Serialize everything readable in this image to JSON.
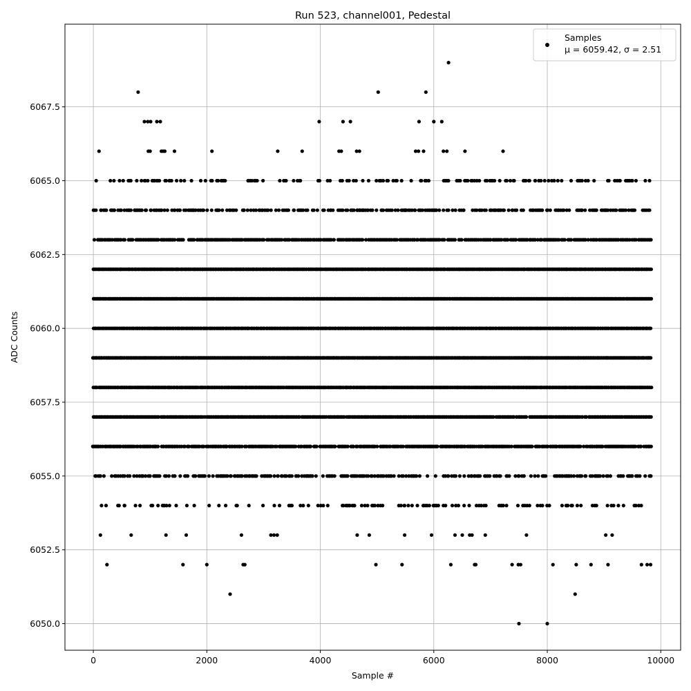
{
  "chart_data": {
    "type": "scatter",
    "title": "Run 523, channel001, Pedestal",
    "xlabel": "Sample #",
    "ylabel": "ADC Counts",
    "xlim": [
      -500,
      10350
    ],
    "ylim": [
      6049.1,
      6070.3
    ],
    "x_ticks": [
      0,
      2000,
      4000,
      6000,
      8000,
      10000
    ],
    "x_tick_labels": [
      "0",
      "2000",
      "4000",
      "6000",
      "8000",
      "10000"
    ],
    "y_ticks": [
      6050.0,
      6052.5,
      6055.0,
      6057.5,
      6060.0,
      6062.5,
      6065.0,
      6067.5
    ],
    "y_tick_labels": [
      "6050.0",
      "6052.5",
      "6055.0",
      "6057.5",
      "6060.0",
      "6062.5",
      "6065.0",
      "6067.5"
    ],
    "grid": true,
    "marker_color": "#000000",
    "legend": {
      "position": "top-right",
      "entries": [
        {
          "label_line1": "Samples",
          "label_line2": "μ = 6059.42, σ = 2.51"
        }
      ]
    },
    "series": [
      {
        "name": "Samples",
        "sample_range": [
          0,
          9830
        ],
        "levels": [
          {
            "y": 6050,
            "density": 0
          },
          {
            "y": 6051,
            "density": 0
          },
          {
            "y": 6052,
            "density": 0
          },
          {
            "y": 6053,
            "density": 0.06
          },
          {
            "y": 6054,
            "density": 0.22
          },
          {
            "y": 6055,
            "density": 0.5
          },
          {
            "y": 6056,
            "density": 0.82
          },
          {
            "y": 6057,
            "density": 0.95
          },
          {
            "y": 6058,
            "density": 1.0
          },
          {
            "y": 6059,
            "density": 1.0
          },
          {
            "y": 6060,
            "density": 1.0
          },
          {
            "y": 6061,
            "density": 1.0
          },
          {
            "y": 6062,
            "density": 1.0
          },
          {
            "y": 6063,
            "density": 0.78
          },
          {
            "y": 6064,
            "density": 0.52
          },
          {
            "y": 6065,
            "density": 0.25
          },
          {
            "y": 6066,
            "density": 0
          },
          {
            "y": 6067,
            "density": 0
          },
          {
            "y": 6068,
            "density": 0
          },
          {
            "y": 6069,
            "density": 0
          }
        ],
        "outliers": [
          {
            "x": 240,
            "y": 6052
          },
          {
            "x": 1580,
            "y": 6052
          },
          {
            "x": 2000,
            "y": 6052
          },
          {
            "x": 2640,
            "y": 6052
          },
          {
            "x": 2670,
            "y": 6052
          },
          {
            "x": 4980,
            "y": 6052
          },
          {
            "x": 5440,
            "y": 6052
          },
          {
            "x": 6300,
            "y": 6052
          },
          {
            "x": 6720,
            "y": 6052
          },
          {
            "x": 6740,
            "y": 6052
          },
          {
            "x": 7380,
            "y": 6052
          },
          {
            "x": 7490,
            "y": 6052
          },
          {
            "x": 7530,
            "y": 6052
          },
          {
            "x": 8100,
            "y": 6052
          },
          {
            "x": 8510,
            "y": 6052
          },
          {
            "x": 8770,
            "y": 6052
          },
          {
            "x": 9070,
            "y": 6052
          },
          {
            "x": 9660,
            "y": 6052
          },
          {
            "x": 9760,
            "y": 6052
          },
          {
            "x": 9820,
            "y": 6052
          },
          {
            "x": 2410,
            "y": 6051
          },
          {
            "x": 8490,
            "y": 6051
          },
          {
            "x": 7500,
            "y": 6050
          },
          {
            "x": 8000,
            "y": 6050
          },
          {
            "x": 100,
            "y": 6066
          },
          {
            "x": 970,
            "y": 6066
          },
          {
            "x": 1000,
            "y": 6066
          },
          {
            "x": 1200,
            "y": 6066
          },
          {
            "x": 1230,
            "y": 6066
          },
          {
            "x": 1260,
            "y": 6066
          },
          {
            "x": 1430,
            "y": 6066
          },
          {
            "x": 2090,
            "y": 6066
          },
          {
            "x": 3250,
            "y": 6066
          },
          {
            "x": 3680,
            "y": 6066
          },
          {
            "x": 4330,
            "y": 6066
          },
          {
            "x": 4370,
            "y": 6066
          },
          {
            "x": 4640,
            "y": 6066
          },
          {
            "x": 4690,
            "y": 6066
          },
          {
            "x": 5680,
            "y": 6066
          },
          {
            "x": 5730,
            "y": 6066
          },
          {
            "x": 5820,
            "y": 6066
          },
          {
            "x": 6170,
            "y": 6066
          },
          {
            "x": 6230,
            "y": 6066
          },
          {
            "x": 6550,
            "y": 6066
          },
          {
            "x": 7220,
            "y": 6066
          },
          {
            "x": 900,
            "y": 6067
          },
          {
            "x": 960,
            "y": 6067
          },
          {
            "x": 1010,
            "y": 6067
          },
          {
            "x": 1120,
            "y": 6067
          },
          {
            "x": 1180,
            "y": 6067
          },
          {
            "x": 3980,
            "y": 6067
          },
          {
            "x": 4400,
            "y": 6067
          },
          {
            "x": 4530,
            "y": 6067
          },
          {
            "x": 5740,
            "y": 6067
          },
          {
            "x": 6000,
            "y": 6067
          },
          {
            "x": 6140,
            "y": 6067
          },
          {
            "x": 790,
            "y": 6068
          },
          {
            "x": 5020,
            "y": 6068
          },
          {
            "x": 5860,
            "y": 6068
          },
          {
            "x": 6260,
            "y": 6069
          }
        ]
      }
    ]
  }
}
